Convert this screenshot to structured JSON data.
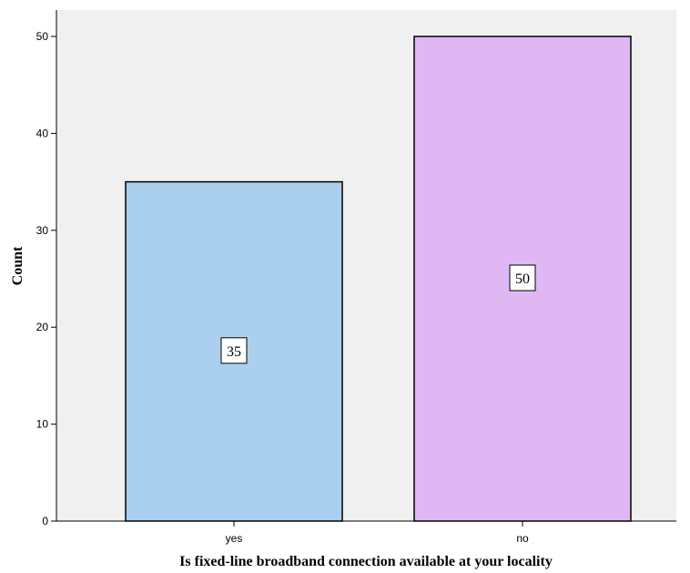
{
  "chart_data": {
    "type": "bar",
    "categories": [
      "yes",
      "no"
    ],
    "values": [
      35,
      50
    ],
    "data_labels": [
      "35",
      "50"
    ],
    "xlabel": "Is fixed-line broadband connection available at  your locality",
    "ylabel": "Count",
    "ylim": [
      0,
      50
    ],
    "y_ticks": [
      0,
      10,
      20,
      30,
      40,
      50
    ],
    "y_tick_labels": [
      "0",
      "10",
      "20",
      "30",
      "40",
      "50"
    ],
    "grid": false,
    "colors": {
      "plot_background": "#f0f0f0",
      "bars": [
        "#abcfee",
        "#dfb8f3"
      ],
      "bar_outline": "#000000"
    }
  }
}
